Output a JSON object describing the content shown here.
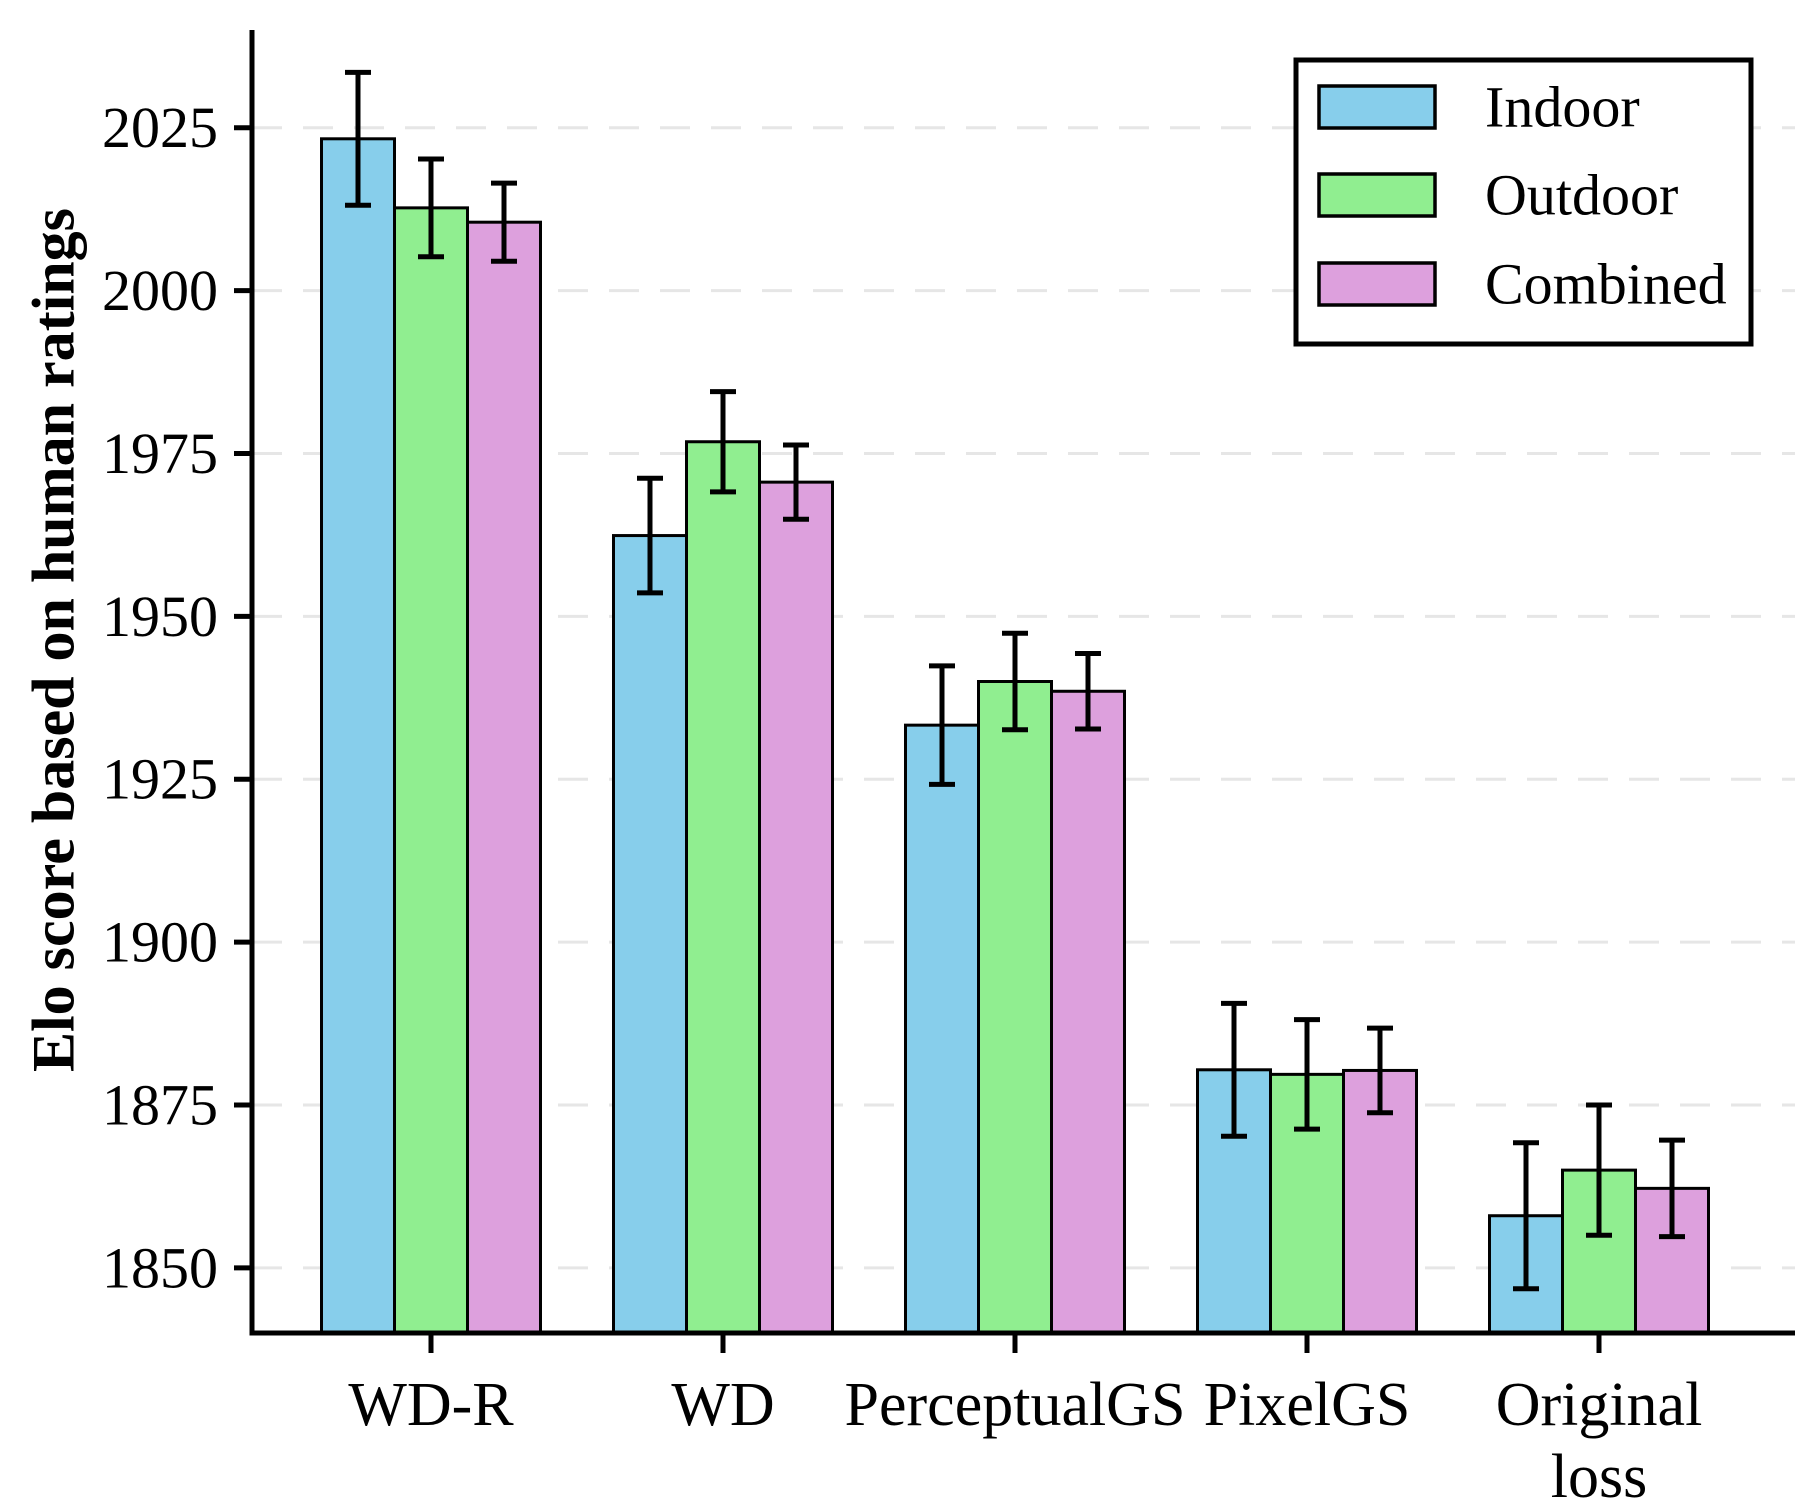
{
  "chart_data": {
    "type": "bar",
    "title": "",
    "xlabel": "",
    "ylabel": "Elo score based on human ratings",
    "categories": [
      "WD-R",
      "WD",
      "PerceptualGS",
      "PixelGS",
      "Original loss"
    ],
    "series": [
      {
        "name": "Indoor",
        "color": "#87CEEB",
        "values": [
          2023.3,
          1962.4,
          1933.3,
          1880.4,
          1858.0
        ],
        "errors": [
          10.2,
          8.8,
          9.1,
          10.2,
          11.2
        ]
      },
      {
        "name": "Outdoor",
        "color": "#90EE90",
        "values": [
          2012.7,
          1976.8,
          1940.0,
          1879.7,
          1865.0
        ],
        "errors": [
          7.5,
          7.7,
          7.4,
          8.4,
          10.0
        ]
      },
      {
        "name": "Combined",
        "color": "#DDA0DD",
        "values": [
          2010.5,
          1970.6,
          1938.5,
          1880.3,
          1862.2
        ],
        "errors": [
          6.0,
          5.7,
          5.8,
          6.5,
          7.4
        ]
      }
    ],
    "ylim": [
      1840,
      2040
    ],
    "yticks": [
      1850,
      1875,
      1900,
      1925,
      1950,
      1975,
      2000,
      2025
    ],
    "grid": "horizontal-dashed",
    "grid_color": "#E6E6E6",
    "bar_edge_color": "#000000",
    "errorbar_color": "#000000",
    "legend_position": "top-right"
  }
}
